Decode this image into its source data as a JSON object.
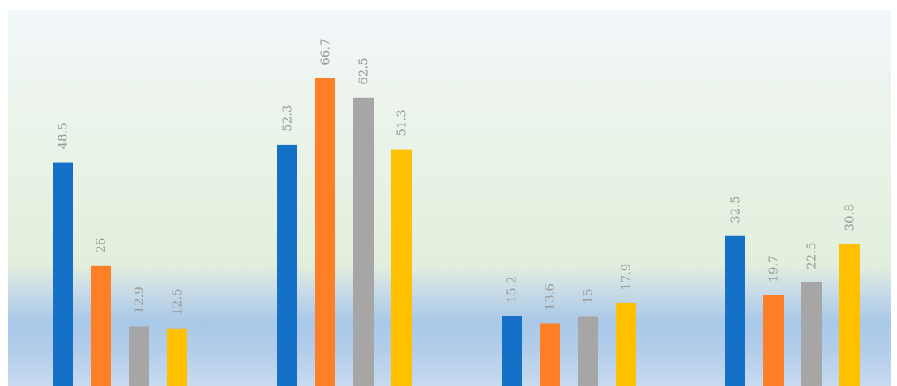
{
  "chart_data": {
    "type": "bar",
    "groups": 4,
    "series": [
      {
        "values": [
          48.5,
          52.3,
          15.2,
          32.5
        ],
        "color": "#1570C8"
      },
      {
        "values": [
          26,
          66.7,
          13.6,
          19.7
        ],
        "color": "#FF7F26"
      },
      {
        "values": [
          12.9,
          62.5,
          15,
          22.5
        ],
        "color": "#A6A6A6"
      },
      {
        "values": [
          12.5,
          51.3,
          17.9,
          30.8
        ],
        "color": "#FFC000"
      }
    ],
    "value_labels": [
      [
        "48.5",
        "52.3",
        "15.2",
        "32.5"
      ],
      [
        "26",
        "66.7",
        "13.6",
        "19.7"
      ],
      [
        "12.9",
        "62.5",
        "15",
        "22.5"
      ],
      [
        "12.5",
        "51.3",
        "17.9",
        "30.8"
      ]
    ],
    "ylim": [
      0,
      80
    ],
    "grid": false,
    "legend": "none",
    "background": "gradient light blue to light green to blue band"
  }
}
